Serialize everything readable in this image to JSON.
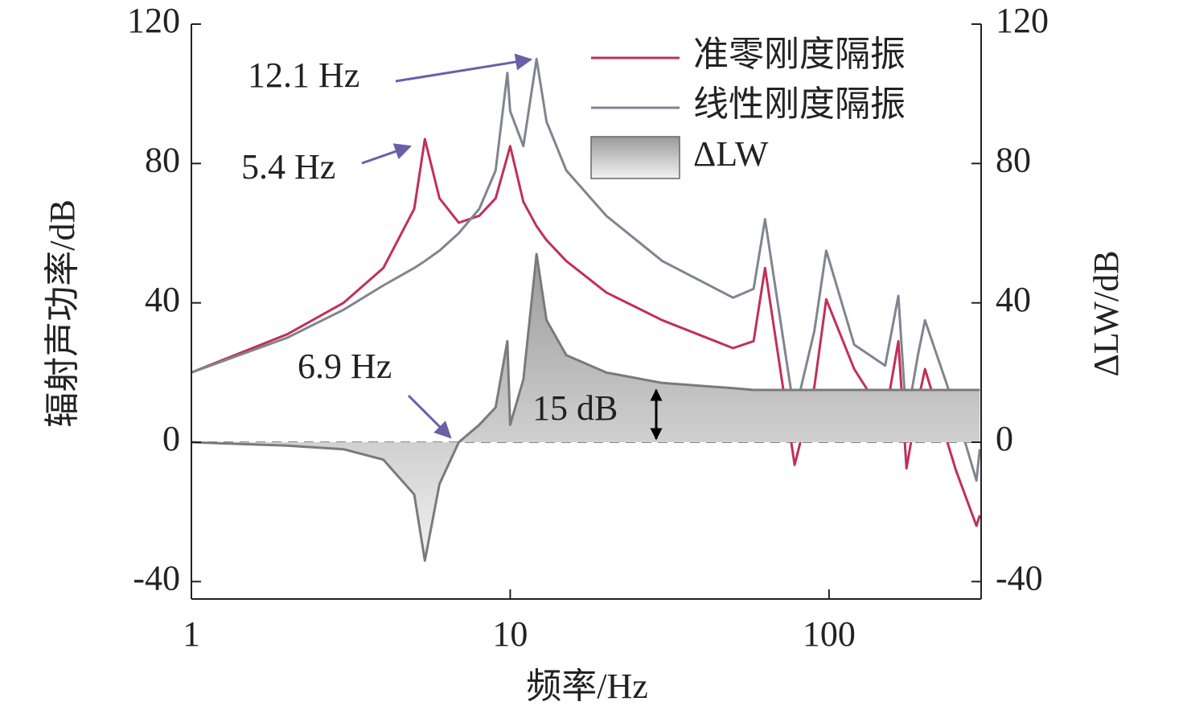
{
  "chart_data": {
    "type": "line",
    "xlabel": "频率/Hz",
    "ylabel": "辐射声功率/dB",
    "y2label": "ΔLW/dB",
    "x": [
      1,
      2,
      3,
      4,
      5,
      5.4,
      6,
      6.9,
      8,
      9,
      9.8,
      10,
      11,
      12.1,
      13,
      15,
      20,
      30,
      50,
      58,
      63,
      78,
      90,
      98,
      120,
      150,
      165,
      175,
      190,
      200,
      250,
      290,
      297
    ],
    "series": [
      {
        "name": "准零刚度隔振",
        "color": "#c0305a",
        "values": [
          20,
          31,
          40,
          50,
          67,
          87,
          70,
          63,
          65,
          70,
          82,
          85,
          69,
          62,
          58,
          52,
          43,
          35,
          27,
          29,
          50,
          -6.5,
          16,
          41,
          21,
          7,
          29,
          -7.5,
          11.5,
          21,
          -8,
          -24,
          -21
        ]
      },
      {
        "name": "线性刚度隔振",
        "color": "#7f8590",
        "values": [
          20,
          30,
          38,
          45,
          50,
          52,
          55,
          60,
          67,
          78,
          106,
          95,
          85,
          110,
          92,
          78,
          65,
          52,
          41.5,
          44,
          64,
          8,
          32,
          55,
          28,
          22,
          42,
          6,
          25,
          35,
          9,
          -11,
          -2
        ]
      },
      {
        "name": "ΔLW",
        "color": "#7a7a7a",
        "axis": "y2",
        "fill": true,
        "values": [
          0,
          -1,
          -2,
          -5,
          -15,
          -34,
          -12,
          0,
          5,
          10,
          29,
          5,
          18,
          54,
          35,
          25,
          20,
          17,
          15.5,
          15,
          15,
          15,
          15,
          15,
          15,
          15,
          15,
          15,
          15,
          15,
          15,
          15,
          15
        ]
      }
    ],
    "annotations": [
      "12.1 Hz",
      "5.4 Hz",
      "6.9 Hz",
      "15 dB"
    ],
    "xscale": "log",
    "xlim": [
      1,
      300
    ],
    "xticks": [
      1,
      10,
      100
    ],
    "ylim": [
      -45,
      120
    ],
    "yticks": [
      -40,
      0,
      40,
      80,
      120
    ],
    "y2lim": [
      -45,
      120
    ],
    "y2ticks": [
      -40,
      0,
      40,
      80,
      120
    ],
    "legend": "upper right"
  }
}
